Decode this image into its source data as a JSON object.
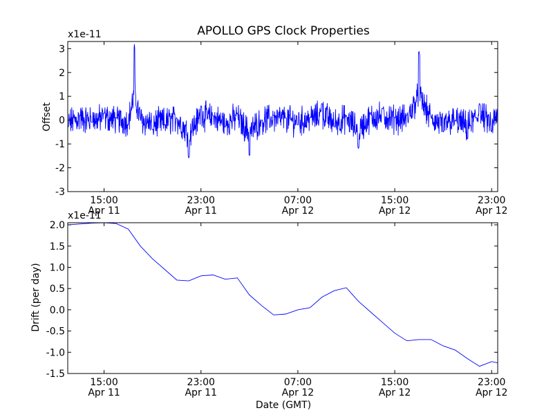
{
  "figure": {
    "title": "APOLLO GPS Clock Properties"
  },
  "chart_data": [
    {
      "type": "line",
      "title": "APOLLO GPS Clock Properties",
      "xlabel": "",
      "ylabel": "Offset",
      "y_multiplier": "x1e-11",
      "ylim": [
        -3,
        3.3
      ],
      "yticks": [
        "-3",
        "-2",
        "-1",
        "0",
        "1",
        "2",
        "3"
      ],
      "x_ticks": [
        {
          "time": "15:00",
          "date": "Apr 11"
        },
        {
          "time": "23:00",
          "date": "Apr 11"
        },
        {
          "time": "07:00",
          "date": "Apr 12"
        },
        {
          "time": "15:00",
          "date": "Apr 12"
        },
        {
          "time": "23:00",
          "date": "Apr 12"
        }
      ],
      "xlim": [
        "2011-04-11 12:00",
        "2011-04-12 23:30"
      ],
      "series": [
        {
          "color": "#0000ff",
          "x": [
            "2011-04-11 12:00",
            "2011-04-11 13:00",
            "2011-04-11 14:00",
            "2011-04-11 15:00",
            "2011-04-11 16:00",
            "2011-04-11 17:00",
            "2011-04-11 17:30",
            "2011-04-11 18:00",
            "2011-04-11 19:00",
            "2011-04-11 20:00",
            "2011-04-11 21:00",
            "2011-04-11 22:00",
            "2011-04-11 23:00",
            "2011-04-12 00:00",
            "2011-04-12 01:00",
            "2011-04-12 02:00",
            "2011-04-12 03:00",
            "2011-04-12 04:00",
            "2011-04-12 05:00",
            "2011-04-12 06:00",
            "2011-04-12 07:00",
            "2011-04-12 08:00",
            "2011-04-12 09:00",
            "2011-04-12 10:00",
            "2011-04-12 11:00",
            "2011-04-12 12:00",
            "2011-04-12 13:00",
            "2011-04-12 14:00",
            "2011-04-12 15:00",
            "2011-04-12 16:00",
            "2011-04-12 17:00",
            "2011-04-12 18:00",
            "2011-04-12 19:00",
            "2011-04-12 20:00",
            "2011-04-12 21:00",
            "2011-04-12 22:00",
            "2011-04-12 23:00",
            "2011-04-12 23:30"
          ],
          "values": [
            -0.3,
            0.2,
            -0.1,
            0.3,
            0.1,
            -0.2,
            3.2,
            0.0,
            -0.4,
            -0.2,
            0.1,
            -1.6,
            0.6,
            0.2,
            -0.3,
            0.3,
            -1.5,
            0.0,
            0.2,
            0.1,
            -0.2,
            0.1,
            0.7,
            -0.3,
            0.2,
            -1.2,
            0.3,
            0.5,
            0.1,
            0.2,
            2.9,
            0.1,
            -0.5,
            0.0,
            -0.8,
            0.7,
            -0.5,
            0.5
          ]
        }
      ]
    },
    {
      "type": "line",
      "title": "",
      "xlabel": "Date (GMT)",
      "ylabel": "Drift (per day)",
      "y_multiplier": "x1e-11",
      "ylim": [
        -1.5,
        2.05
      ],
      "yticks": [
        "-1.5",
        "-1.0",
        "-0.5",
        "0.0",
        "0.5",
        "1.0",
        "1.5",
        "2.0"
      ],
      "x_ticks": [
        {
          "time": "15:00",
          "date": "Apr 11"
        },
        {
          "time": "23:00",
          "date": "Apr 11"
        },
        {
          "time": "07:00",
          "date": "Apr 12"
        },
        {
          "time": "15:00",
          "date": "Apr 12"
        },
        {
          "time": "23:00",
          "date": "Apr 12"
        }
      ],
      "xlim": [
        "2011-04-11 12:00",
        "2011-04-12 23:30"
      ],
      "series": [
        {
          "color": "#0000ff",
          "x": [
            "2011-04-11 12:00",
            "2011-04-11 13:00",
            "2011-04-11 14:00",
            "2011-04-11 15:00",
            "2011-04-11 16:00",
            "2011-04-11 17:00",
            "2011-04-11 18:00",
            "2011-04-11 19:00",
            "2011-04-11 20:00",
            "2011-04-11 21:00",
            "2011-04-11 22:00",
            "2011-04-11 23:00",
            "2011-04-12 00:00",
            "2011-04-12 01:00",
            "2011-04-12 02:00",
            "2011-04-12 03:00",
            "2011-04-12 04:00",
            "2011-04-12 05:00",
            "2011-04-12 06:00",
            "2011-04-12 07:00",
            "2011-04-12 08:00",
            "2011-04-12 09:00",
            "2011-04-12 10:00",
            "2011-04-12 11:00",
            "2011-04-12 12:00",
            "2011-04-12 13:00",
            "2011-04-12 14:00",
            "2011-04-12 15:00",
            "2011-04-12 16:00",
            "2011-04-12 17:00",
            "2011-04-12 18:00",
            "2011-04-12 19:00",
            "2011-04-12 20:00",
            "2011-04-12 21:00",
            "2011-04-12 22:00",
            "2011-04-12 23:00",
            "2011-04-12 23:30"
          ],
          "values": [
            2.0,
            2.02,
            2.04,
            2.05,
            2.03,
            1.9,
            1.5,
            1.2,
            0.95,
            0.7,
            0.68,
            0.8,
            0.82,
            0.72,
            0.75,
            0.35,
            0.1,
            -0.12,
            -0.1,
            0.0,
            0.05,
            0.3,
            0.45,
            0.52,
            0.2,
            -0.05,
            -0.3,
            -0.55,
            -0.73,
            -0.7,
            -0.7,
            -0.85,
            -0.95,
            -1.15,
            -1.33,
            -1.22,
            -1.25
          ]
        }
      ]
    }
  ]
}
